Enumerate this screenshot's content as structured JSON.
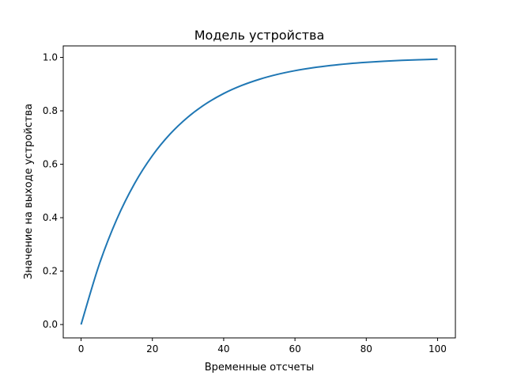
{
  "chart_data": {
    "type": "line",
    "title": "Модель устройства",
    "xlabel": "Временные отсчеты",
    "ylabel": "Значение на выходе устройства",
    "xlim": [
      -5,
      105
    ],
    "ylim": [
      -0.05,
      1.043
    ],
    "xticks": [
      "0",
      "20",
      "40",
      "60",
      "80",
      "100"
    ],
    "yticks": [
      "0.0",
      "0.2",
      "0.4",
      "0.6",
      "0.8",
      "1.0"
    ],
    "grid": false,
    "color": "#1f77b4",
    "series": [
      {
        "x": [
          0,
          5,
          10,
          15,
          20,
          25,
          30,
          35,
          40,
          45,
          50,
          55,
          60,
          65,
          70,
          75,
          80,
          85,
          90,
          95,
          100
        ],
        "y": [
          0,
          0.2212,
          0.3935,
          0.5276,
          0.6321,
          0.7135,
          0.7769,
          0.8262,
          0.8647,
          0.8946,
          0.9179,
          0.9361,
          0.9502,
          0.9612,
          0.9698,
          0.9765,
          0.9817,
          0.9857,
          0.9889,
          0.9913,
          0.9933
        ]
      }
    ]
  }
}
